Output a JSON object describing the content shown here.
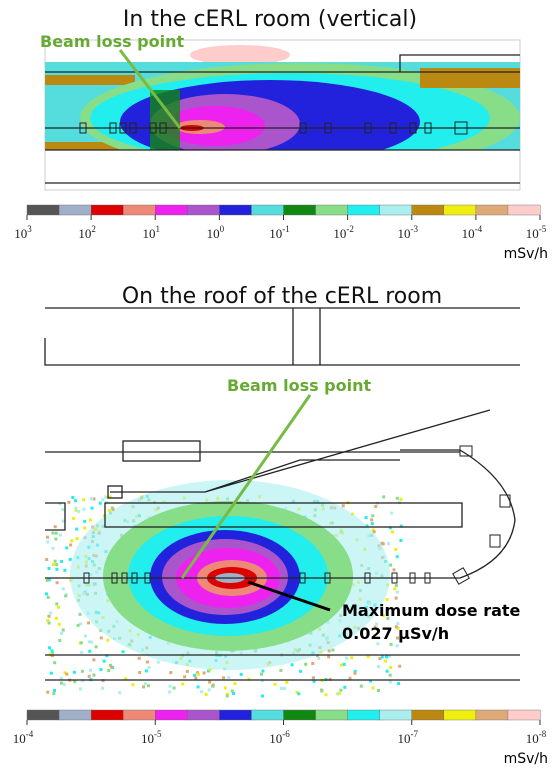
{
  "panels": [
    {
      "title": "In the cERL room (vertical)",
      "annotation": "Beam loss point",
      "colorbar": {
        "colors": [
          "#555555",
          "#9fb0c8",
          "#dd0000",
          "#ee8877",
          "#ee22ee",
          "#aa55cc",
          "#2222dd",
          "#55dddd",
          "#118811",
          "#88dd88",
          "#22eeee",
          "#aaeeee",
          "#bb8811",
          "#eeee11",
          "#ddaa77",
          "#ffcccc"
        ],
        "ticks": [
          {
            "base": "10",
            "exp": "3"
          },
          {
            "base": "10",
            "exp": "2"
          },
          {
            "base": "10",
            "exp": "1"
          },
          {
            "base": "10",
            "exp": "0"
          },
          {
            "base": "10",
            "exp": "-1"
          },
          {
            "base": "10",
            "exp": "-2"
          },
          {
            "base": "10",
            "exp": "-3"
          },
          {
            "base": "10",
            "exp": "-4"
          },
          {
            "base": "10",
            "exp": "-5"
          }
        ],
        "unit": "mSv/h"
      }
    },
    {
      "title": "On the roof of the cERL room",
      "annotations": [
        "Beam loss point",
        "Maximum dose rate",
        "0.027 µSv/h"
      ],
      "colorbar": {
        "colors": [
          "#555555",
          "#9fb0c8",
          "#dd0000",
          "#ee8877",
          "#ee22ee",
          "#aa55cc",
          "#2222dd",
          "#55dddd",
          "#118811",
          "#88dd88",
          "#22eeee",
          "#aaeeee",
          "#bb8811",
          "#eeee11",
          "#ddaa77",
          "#ffcccc"
        ],
        "ticks": [
          {
            "base": "10",
            "exp": "-4"
          },
          {
            "base": "10",
            "exp": "-5"
          },
          {
            "base": "10",
            "exp": "-6"
          },
          {
            "base": "10",
            "exp": "-7"
          },
          {
            "base": "10",
            "exp": "-8"
          }
        ],
        "unit": "mSv/h"
      }
    }
  ]
}
